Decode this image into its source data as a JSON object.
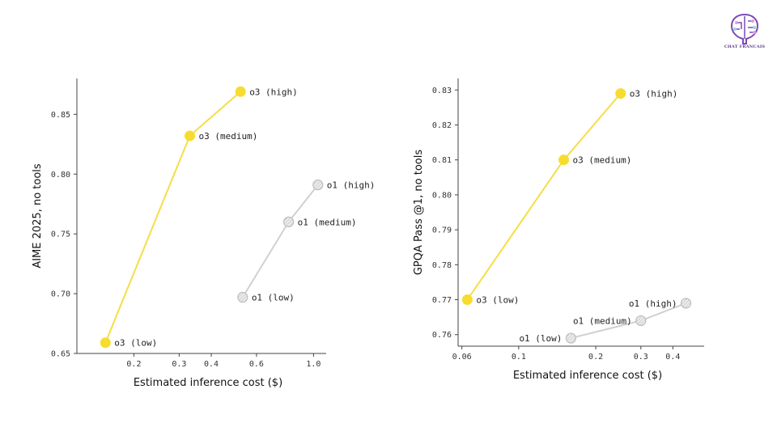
{
  "logo": {
    "text": "CHAT FRANCAIS",
    "color": "#7b4bb5"
  },
  "colors": {
    "o3": "#f7dc2e",
    "o3_line": "#f5de45",
    "o1_fill": "#e6e6e6",
    "o1_stroke": "#bdbdbd",
    "o1_line": "#d0d0d0",
    "axis": "#444444"
  },
  "chart_data": [
    {
      "type": "line",
      "xlabel": "Estimated inference cost ($)",
      "ylabel": "AIME 2025, no tools",
      "x_scale": "log",
      "xlim": [
        0.12,
        1.12
      ],
      "ylim": [
        0.65,
        0.88
      ],
      "x_ticks": [
        {
          "value": 0.2,
          "label": "0.2"
        },
        {
          "value": 0.3,
          "label": "0.3"
        },
        {
          "value": 0.4,
          "label": "0.4"
        },
        {
          "value": 0.6,
          "label": "0.6"
        },
        {
          "value": 1.0,
          "label": "1.0"
        }
      ],
      "y_ticks": [
        {
          "value": 0.65,
          "label": "0.65"
        },
        {
          "value": 0.7,
          "label": "0.70"
        },
        {
          "value": 0.75,
          "label": "0.75"
        },
        {
          "value": 0.8,
          "label": "0.80"
        },
        {
          "value": 0.85,
          "label": "0.85"
        }
      ],
      "series": [
        {
          "key": "o3",
          "points": [
            {
              "label": "o3 (low)",
              "x": 0.155,
              "y": 0.659,
              "label_side": "right"
            },
            {
              "label": "o3 (medium)",
              "x": 0.33,
              "y": 0.832,
              "label_side": "right"
            },
            {
              "label": "o3 (high)",
              "x": 0.52,
              "y": 0.869,
              "label_side": "right"
            }
          ]
        },
        {
          "key": "o1",
          "points": [
            {
              "label": "o1 (low)",
              "x": 0.53,
              "y": 0.697,
              "label_side": "right"
            },
            {
              "label": "o1 (medium)",
              "x": 0.8,
              "y": 0.76,
              "label_side": "right"
            },
            {
              "label": "o1 (high)",
              "x": 1.04,
              "y": 0.791,
              "label_side": "right"
            }
          ]
        }
      ]
    },
    {
      "type": "line",
      "xlabel": "Estimated inference cost ($)",
      "ylabel": "GPQA Pass @1, no tools",
      "x_scale": "log",
      "xlim": [
        0.058,
        0.53
      ],
      "ylim": [
        0.7567,
        0.8333
      ],
      "x_ticks": [
        {
          "value": 0.06,
          "label": "0.06"
        },
        {
          "value": 0.1,
          "label": "0.1"
        },
        {
          "value": 0.2,
          "label": "0.2"
        },
        {
          "value": 0.3,
          "label": "0.3"
        },
        {
          "value": 0.4,
          "label": "0.4"
        }
      ],
      "y_ticks": [
        {
          "value": 0.76,
          "label": "0.76"
        },
        {
          "value": 0.77,
          "label": "0.77"
        },
        {
          "value": 0.78,
          "label": "0.78"
        },
        {
          "value": 0.79,
          "label": "0.79"
        },
        {
          "value": 0.8,
          "label": "0.80"
        },
        {
          "value": 0.81,
          "label": "0.81"
        },
        {
          "value": 0.82,
          "label": "0.82"
        },
        {
          "value": 0.83,
          "label": "0.83"
        }
      ],
      "series": [
        {
          "key": "o3",
          "points": [
            {
              "label": "o3 (low)",
              "x": 0.063,
              "y": 0.77,
              "label_side": "right"
            },
            {
              "label": "o3 (medium)",
              "x": 0.15,
              "y": 0.81,
              "label_side": "right"
            },
            {
              "label": "o3 (high)",
              "x": 0.25,
              "y": 0.829,
              "label_side": "right"
            }
          ]
        },
        {
          "key": "o1",
          "points": [
            {
              "label": "o1 (low)",
              "x": 0.16,
              "y": 0.759,
              "label_side": "left"
            },
            {
              "label": "o1 (medium)",
              "x": 0.3,
              "y": 0.764,
              "label_side": "left"
            },
            {
              "label": "o1 (high)",
              "x": 0.45,
              "y": 0.769,
              "label_side": "left"
            }
          ]
        }
      ]
    }
  ]
}
